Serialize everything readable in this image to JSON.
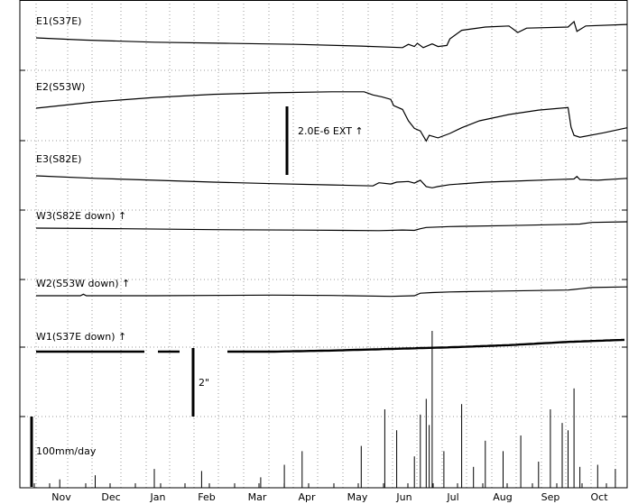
{
  "chart_data": {
    "type": "line",
    "x_ticks": [
      "Nov",
      "Dec",
      "Jan",
      "Feb",
      "Mar",
      "Apr",
      "May",
      "Jun",
      "Jul",
      "Aug",
      "Sep",
      "Oct"
    ],
    "grid": true,
    "strain_scale_label": "2.0E-6  EXT ↑",
    "tilt_scale_label": "2\"",
    "rain_scale_label": "100mm/day",
    "series": [
      {
        "name": "E1(S37E)",
        "points": [
          [
            0,
            0
          ],
          [
            0.08,
            0.1
          ],
          [
            0.2,
            0.2
          ],
          [
            0.32,
            0.25
          ],
          [
            0.44,
            0.3
          ],
          [
            0.55,
            0.38
          ],
          [
            0.62,
            0.45
          ],
          [
            0.63,
            0.3
          ],
          [
            0.64,
            0.4
          ],
          [
            0.645,
            0.25
          ],
          [
            0.655,
            0.45
          ],
          [
            0.67,
            0.28
          ],
          [
            0.68,
            0.4
          ],
          [
            0.695,
            0.35
          ],
          [
            0.7,
            0.05
          ],
          [
            0.72,
            -0.35
          ],
          [
            0.76,
            -0.5
          ],
          [
            0.8,
            -0.55
          ],
          [
            0.815,
            -0.25
          ],
          [
            0.83,
            -0.45
          ],
          [
            0.9,
            -0.5
          ],
          [
            0.91,
            -0.75
          ],
          [
            0.915,
            -0.3
          ],
          [
            0.93,
            -0.55
          ],
          [
            1,
            -0.62
          ]
        ]
      },
      {
        "name": "E2(S53W)",
        "points": [
          [
            0,
            0
          ],
          [
            0.1,
            -0.5
          ],
          [
            0.2,
            -0.85
          ],
          [
            0.3,
            -1.1
          ],
          [
            0.4,
            -1.22
          ],
          [
            0.5,
            -1.3
          ],
          [
            0.555,
            -1.3
          ],
          [
            0.57,
            -1.05
          ],
          [
            0.585,
            -0.9
          ],
          [
            0.6,
            -0.7
          ],
          [
            0.605,
            -0.2
          ],
          [
            0.62,
            0.1
          ],
          [
            0.63,
            1.0
          ],
          [
            0.64,
            1.6
          ],
          [
            0.65,
            1.8
          ],
          [
            0.66,
            2.6
          ],
          [
            0.665,
            2.15
          ],
          [
            0.68,
            2.35
          ],
          [
            0.7,
            2.0
          ],
          [
            0.72,
            1.55
          ],
          [
            0.75,
            1.0
          ],
          [
            0.8,
            0.5
          ],
          [
            0.85,
            0.15
          ],
          [
            0.9,
            -0.05
          ],
          [
            0.905,
            1.5
          ],
          [
            0.91,
            2.15
          ],
          [
            0.92,
            2.3
          ],
          [
            0.96,
            1.95
          ],
          [
            1,
            1.55
          ]
        ]
      },
      {
        "name": "E3(S82E)",
        "points": [
          [
            0,
            0
          ],
          [
            0.1,
            0.2
          ],
          [
            0.2,
            0.35
          ],
          [
            0.3,
            0.5
          ],
          [
            0.4,
            0.62
          ],
          [
            0.5,
            0.72
          ],
          [
            0.57,
            0.8
          ],
          [
            0.58,
            0.55
          ],
          [
            0.6,
            0.65
          ],
          [
            0.61,
            0.5
          ],
          [
            0.63,
            0.45
          ],
          [
            0.64,
            0.58
          ],
          [
            0.65,
            0.35
          ],
          [
            0.66,
            0.85
          ],
          [
            0.67,
            0.95
          ],
          [
            0.68,
            0.85
          ],
          [
            0.7,
            0.7
          ],
          [
            0.76,
            0.5
          ],
          [
            0.82,
            0.4
          ],
          [
            0.88,
            0.3
          ],
          [
            0.91,
            0.25
          ],
          [
            0.915,
            0.05
          ],
          [
            0.92,
            0.3
          ],
          [
            0.95,
            0.35
          ],
          [
            1,
            0.2
          ]
        ]
      },
      {
        "name": "W3(S82E down) ↑",
        "points": [
          [
            0,
            0
          ],
          [
            0.15,
            0.05
          ],
          [
            0.3,
            0.12
          ],
          [
            0.45,
            0.16
          ],
          [
            0.58,
            0.2
          ],
          [
            0.62,
            0.15
          ],
          [
            0.64,
            0.18
          ],
          [
            0.65,
            0.05
          ],
          [
            0.66,
            -0.05
          ],
          [
            0.7,
            -0.12
          ],
          [
            0.8,
            -0.2
          ],
          [
            0.9,
            -0.3
          ],
          [
            0.92,
            -0.32
          ],
          [
            0.94,
            -0.45
          ],
          [
            1,
            -0.5
          ]
        ]
      },
      {
        "name": "W2(S53W down) ↑",
        "points": [
          [
            0,
            0
          ],
          [
            0.075,
            0
          ],
          [
            0.08,
            -0.12
          ],
          [
            0.085,
            0
          ],
          [
            0.2,
            0
          ],
          [
            0.4,
            -0.05
          ],
          [
            0.5,
            -0.02
          ],
          [
            0.6,
            0.05
          ],
          [
            0.64,
            0
          ],
          [
            0.65,
            -0.2
          ],
          [
            0.67,
            -0.25
          ],
          [
            0.7,
            -0.3
          ],
          [
            0.8,
            -0.38
          ],
          [
            0.9,
            -0.45
          ],
          [
            0.92,
            -0.55
          ],
          [
            0.94,
            -0.65
          ],
          [
            1,
            -0.7
          ]
        ]
      },
      {
        "name": "W1(S37E down) ↑",
        "points": [
          [
            0,
            0
          ],
          [
            0.1,
            0
          ],
          [
            0.2,
            0
          ],
          [
            0.3,
            0
          ],
          [
            0.4,
            0
          ],
          [
            0.5,
            -0.02
          ],
          [
            0.6,
            -0.05
          ],
          [
            0.7,
            -0.08
          ],
          [
            0.8,
            -0.12
          ],
          [
            0.9,
            -0.18
          ],
          [
            1,
            -0.22
          ]
        ]
      }
    ],
    "rain_spikes": [
      [
        0.04,
        0.08
      ],
      [
        0.1,
        0.12
      ],
      [
        0.2,
        0.18
      ],
      [
        0.28,
        0.16
      ],
      [
        0.38,
        0.1
      ],
      [
        0.42,
        0.22
      ],
      [
        0.45,
        0.35
      ],
      [
        0.55,
        0.4
      ],
      [
        0.59,
        0.75
      ],
      [
        0.61,
        0.55
      ],
      [
        0.64,
        0.3
      ],
      [
        0.65,
        0.7
      ],
      [
        0.66,
        0.85
      ],
      [
        0.665,
        0.6
      ],
      [
        0.67,
        1.5
      ],
      [
        0.69,
        0.35
      ],
      [
        0.72,
        0.8
      ],
      [
        0.74,
        0.2
      ],
      [
        0.76,
        0.45
      ],
      [
        0.79,
        0.35
      ],
      [
        0.82,
        0.5
      ],
      [
        0.85,
        0.25
      ],
      [
        0.87,
        0.75
      ],
      [
        0.89,
        0.62
      ],
      [
        0.9,
        0.55
      ],
      [
        0.91,
        0.95
      ],
      [
        0.92,
        0.2
      ],
      [
        0.95,
        0.22
      ],
      [
        0.98,
        0.18
      ],
      [
        1,
        0.1
      ]
    ]
  }
}
